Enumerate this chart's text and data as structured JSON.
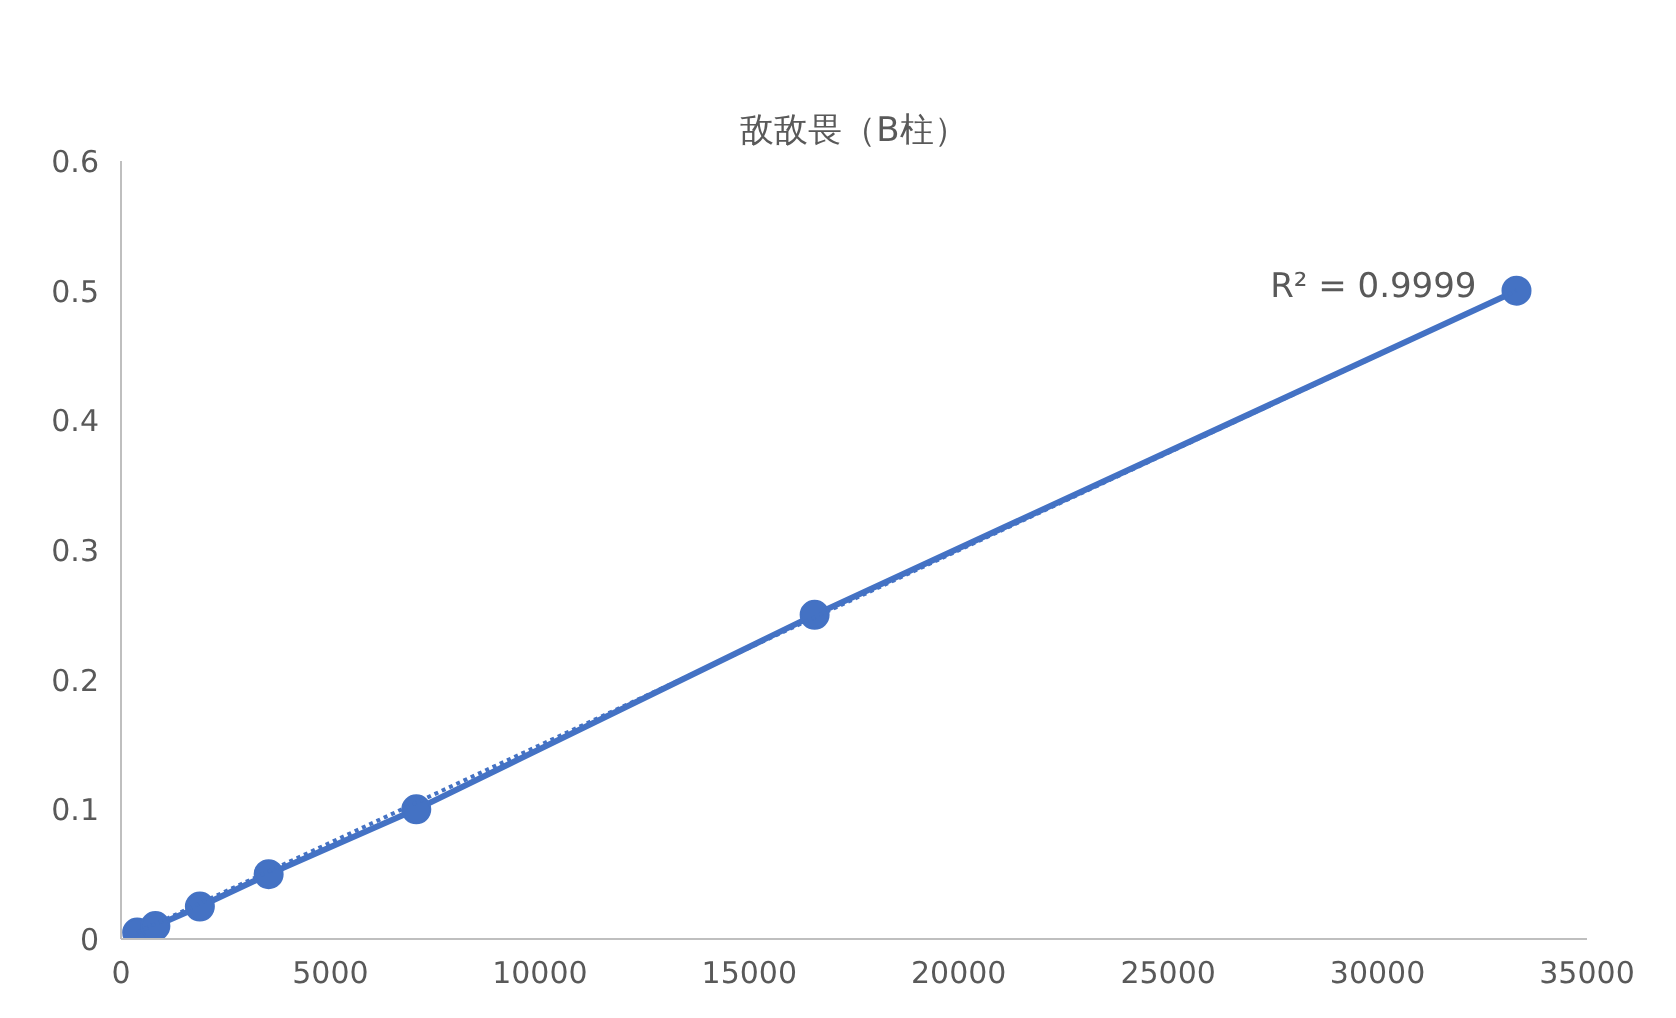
{
  "chart_data": {
    "type": "line",
    "title": "敌敌畏（B柱）",
    "marker": "circle",
    "line_style": "solid",
    "xlim": [
      0,
      35000
    ],
    "xticks": [
      0,
      5000,
      10000,
      15000,
      20000,
      25000,
      30000,
      35000
    ],
    "ylim": [
      0,
      0.6
    ],
    "yticks": [
      0,
      0.1,
      0.2,
      0.3,
      0.4,
      0.5,
      0.6
    ],
    "grid": false,
    "x": [
      386,
      821,
      1883,
      3525,
      7050,
      16560,
      33317
    ],
    "series": [
      {
        "color": "#4472c4",
        "values": [
          0.005,
          0.01,
          0.025,
          0.05,
          0.1,
          0.25,
          0.5
        ]
      },
      {
        "type": "line",
        "marker": "none",
        "line_style": "dotted",
        "color": "#4472c4",
        "x": [
          386,
          33317
        ],
        "values": [
          0.005,
          0.5
        ]
      }
    ],
    "annotations": [
      "R² = 0.9999"
    ]
  }
}
